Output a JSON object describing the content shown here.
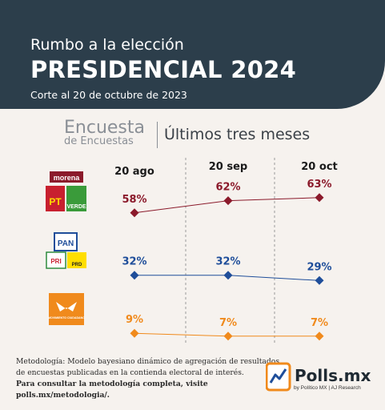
{
  "header": {
    "pretitle": "Rumbo a la elección",
    "title": "PRESIDENCIAL 2024",
    "date": "Corte al 20 de octubre de 2023"
  },
  "subheader": {
    "brand_line1": "Encuesta",
    "brand_line2": "de Encuestas",
    "range_label": "Últimos tres meses"
  },
  "logos": {
    "morena": "morena",
    "pt": "PT",
    "verde": "VERDE",
    "pan": "PAN",
    "pri": "PRI",
    "prd": "PRD",
    "mc": "MOVIMIENTO CIUDADANO"
  },
  "chart_data": {
    "type": "line",
    "categories": [
      "20 ago",
      "20 sep",
      "20 oct"
    ],
    "series": [
      {
        "values": [
          58,
          62,
          63
        ],
        "labels": [
          "58%",
          "62%",
          "63%"
        ],
        "color": "#8b1a2b"
      },
      {
        "values": [
          32,
          32,
          29
        ],
        "labels": [
          "32%",
          "32%",
          "29%"
        ],
        "color": "#1f4e9a"
      },
      {
        "values": [
          9,
          7,
          7
        ],
        "labels": [
          "9%",
          "7%",
          "7%"
        ],
        "color": "#f08a1c"
      }
    ]
  },
  "footer": {
    "method_line1": "Metodología: Modelo bayesiano dinámico de agregación de resultados",
    "method_line2": "de encuestas publicadas en la contienda electoral de interés.",
    "method_line3": "Para consultar la metodología completa, visite polls.mx/metodologia/.",
    "brand": "Polls.mx",
    "brand_sub": "by Político MX  |  AJ Research"
  },
  "colors": {
    "header_bg": "#2c3e4b",
    "page_bg": "#f6f2ee",
    "morena": "#8b1a2b",
    "pan": "#1f4e9a",
    "mc": "#f08a1c"
  }
}
